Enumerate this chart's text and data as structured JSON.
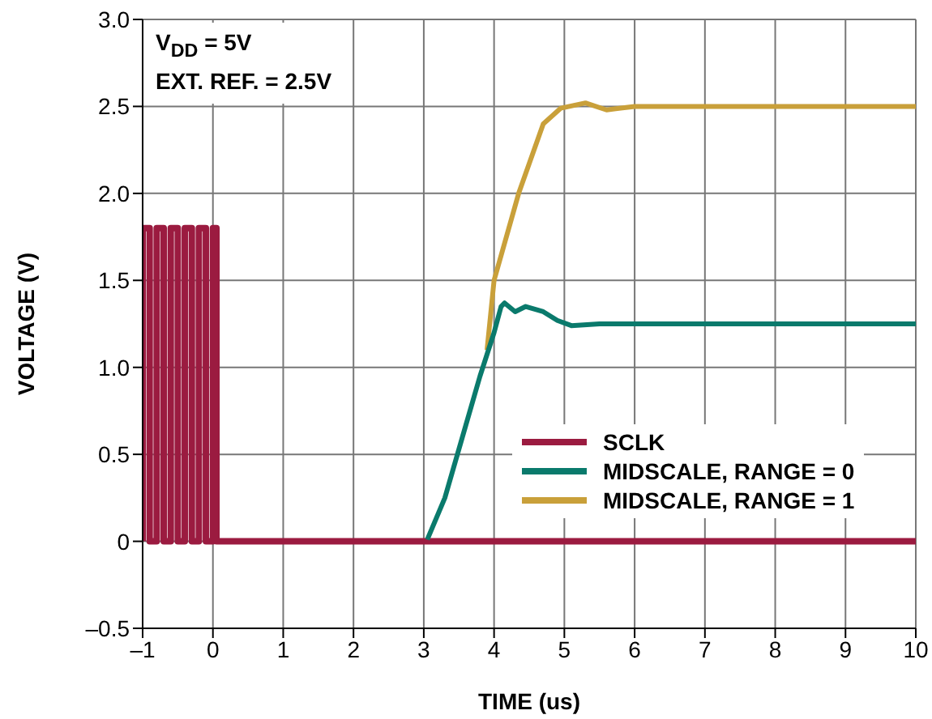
{
  "chart_data": {
    "type": "line",
    "xlabel": "TIME (us)",
    "ylabel": "VOLTAGE (V)",
    "annotations": [
      "V$_{DD}$ = 5V",
      "EXT. REF. = 2.5V"
    ],
    "xlim": [
      -1,
      10
    ],
    "xticks": [
      {
        "value": -1,
        "label": "–1"
      },
      0,
      1,
      2,
      3,
      4,
      5,
      6,
      7,
      8,
      9,
      10
    ],
    "ylim": [
      -0.5,
      3
    ],
    "yticks": [
      {
        "value": -0.5,
        "label": "–0.5"
      },
      0,
      0.5,
      {
        "value": 1,
        "label": "1.0"
      },
      1.5,
      {
        "value": 2,
        "label": "2.0"
      },
      2.5,
      {
        "value": 3,
        "label": "3.0"
      }
    ],
    "grid": true,
    "legend": "bottom right",
    "series": [
      {
        "name": "SCLK",
        "color": "#9b1b40",
        "x": [
          -1,
          -1,
          -0.9,
          -0.9,
          -0.8,
          -0.8,
          -0.7,
          -0.7,
          -0.6,
          -0.6,
          -0.5,
          -0.5,
          -0.4,
          -0.4,
          -0.3,
          -0.3,
          -0.2,
          -0.2,
          -0.1,
          -0.1,
          0,
          0,
          0.05,
          0.05,
          10
        ],
        "values": [
          0,
          1.8,
          1.8,
          0,
          0,
          1.8,
          1.8,
          0,
          0,
          1.8,
          1.8,
          0,
          0,
          1.8,
          1.8,
          0,
          0,
          1.8,
          1.8,
          0,
          0,
          1.8,
          1.8,
          0,
          0
        ]
      },
      {
        "name": "MIDSCALE, RANGE = 1",
        "color": "#c9a03a",
        "x": [
          3.9,
          4.0,
          4.35,
          4.7,
          4.95,
          5.3,
          5.6,
          6,
          10
        ],
        "values": [
          1.1,
          1.5,
          2.0,
          2.4,
          2.49,
          2.52,
          2.48,
          2.5,
          2.5
        ]
      },
      {
        "name": "MIDSCALE, RANGE = 0",
        "color": "#0a7a6c",
        "x": [
          3.05,
          3.3,
          3.55,
          3.8,
          4.0,
          4.1,
          4.15,
          4.3,
          4.45,
          4.7,
          4.9,
          5.1,
          5.5,
          10
        ],
        "values": [
          0.01,
          0.25,
          0.6,
          0.95,
          1.2,
          1.35,
          1.37,
          1.32,
          1.35,
          1.32,
          1.27,
          1.24,
          1.25,
          1.25
        ]
      }
    ]
  }
}
